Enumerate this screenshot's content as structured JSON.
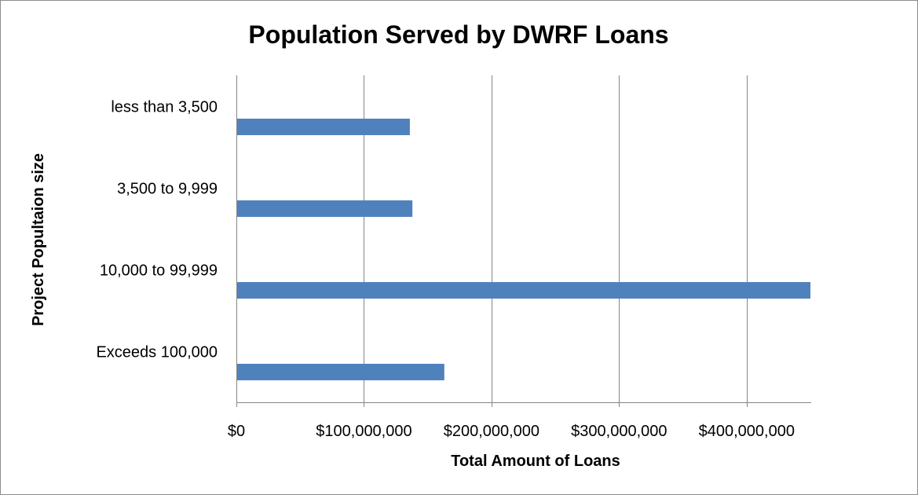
{
  "chart_data": {
    "type": "bar",
    "orientation": "horizontal",
    "title": "Population Served by DWRF Loans",
    "xlabel": "Total Amount of Loans",
    "ylabel": "Project Popultaion size",
    "categories": [
      "less than 3,500",
      "3,500 to 9,999",
      "10,000 to 99,999",
      "Exceeds 100,000"
    ],
    "values": [
      136000000,
      138000000,
      450000000,
      163000000
    ],
    "xlim": [
      0,
      450000000
    ],
    "x_tick_labels": [
      "$0",
      "$100,000,000",
      "$200,000,000",
      "$300,000,000",
      "$400,000,000"
    ],
    "x_tick_values": [
      0,
      100000000,
      200000000,
      300000000,
      400000000
    ],
    "grid": "vertical",
    "legend": "none",
    "bar_color": "#4f81bd"
  }
}
